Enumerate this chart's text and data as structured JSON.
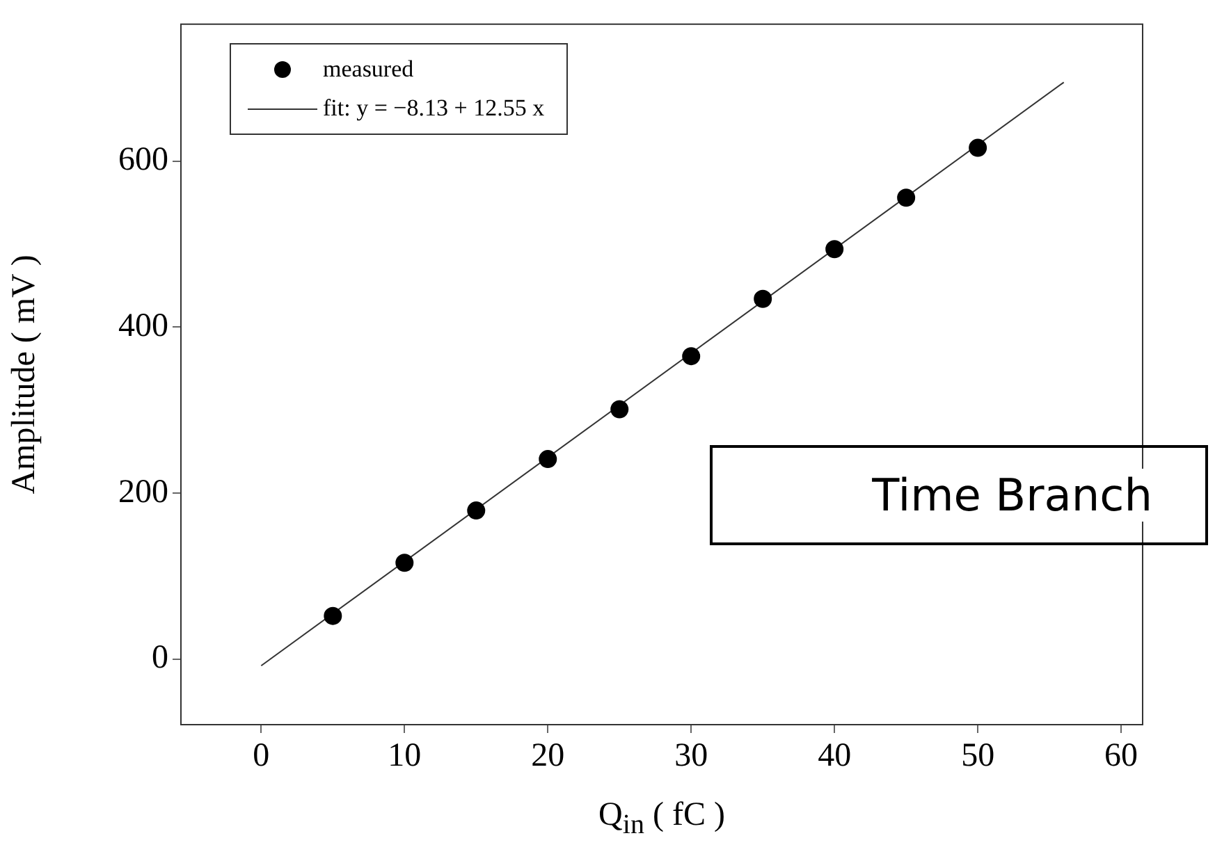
{
  "chart_data": {
    "type": "scatter",
    "xlabel": "Q$_{in}$ ( fC )",
    "ylabel": "Amplitude ( mV )",
    "xlim": [
      -5.6,
      61.5
    ],
    "ylim": [
      -79,
      765
    ],
    "xticks": [
      0,
      10,
      20,
      30,
      40,
      50,
      60
    ],
    "yticks": [
      0,
      200,
      400,
      600
    ],
    "legend": "top left",
    "series": [
      {
        "name": "measured",
        "marker": "circle",
        "color": "#000000",
        "x": [
          5,
          10,
          15,
          20,
          25,
          30,
          35,
          40,
          45,
          50
        ],
        "values": [
          52,
          116,
          179,
          241,
          301,
          365,
          434,
          494,
          556,
          616
        ]
      },
      {
        "name": "fit: y = −8.13 + 12.55 x",
        "type": "line",
        "marker": "none",
        "color": "#333333",
        "x": [
          0,
          56
        ],
        "values": [
          -8,
          695
        ]
      }
    ],
    "annotations": [
      "Time Branch"
    ]
  }
}
